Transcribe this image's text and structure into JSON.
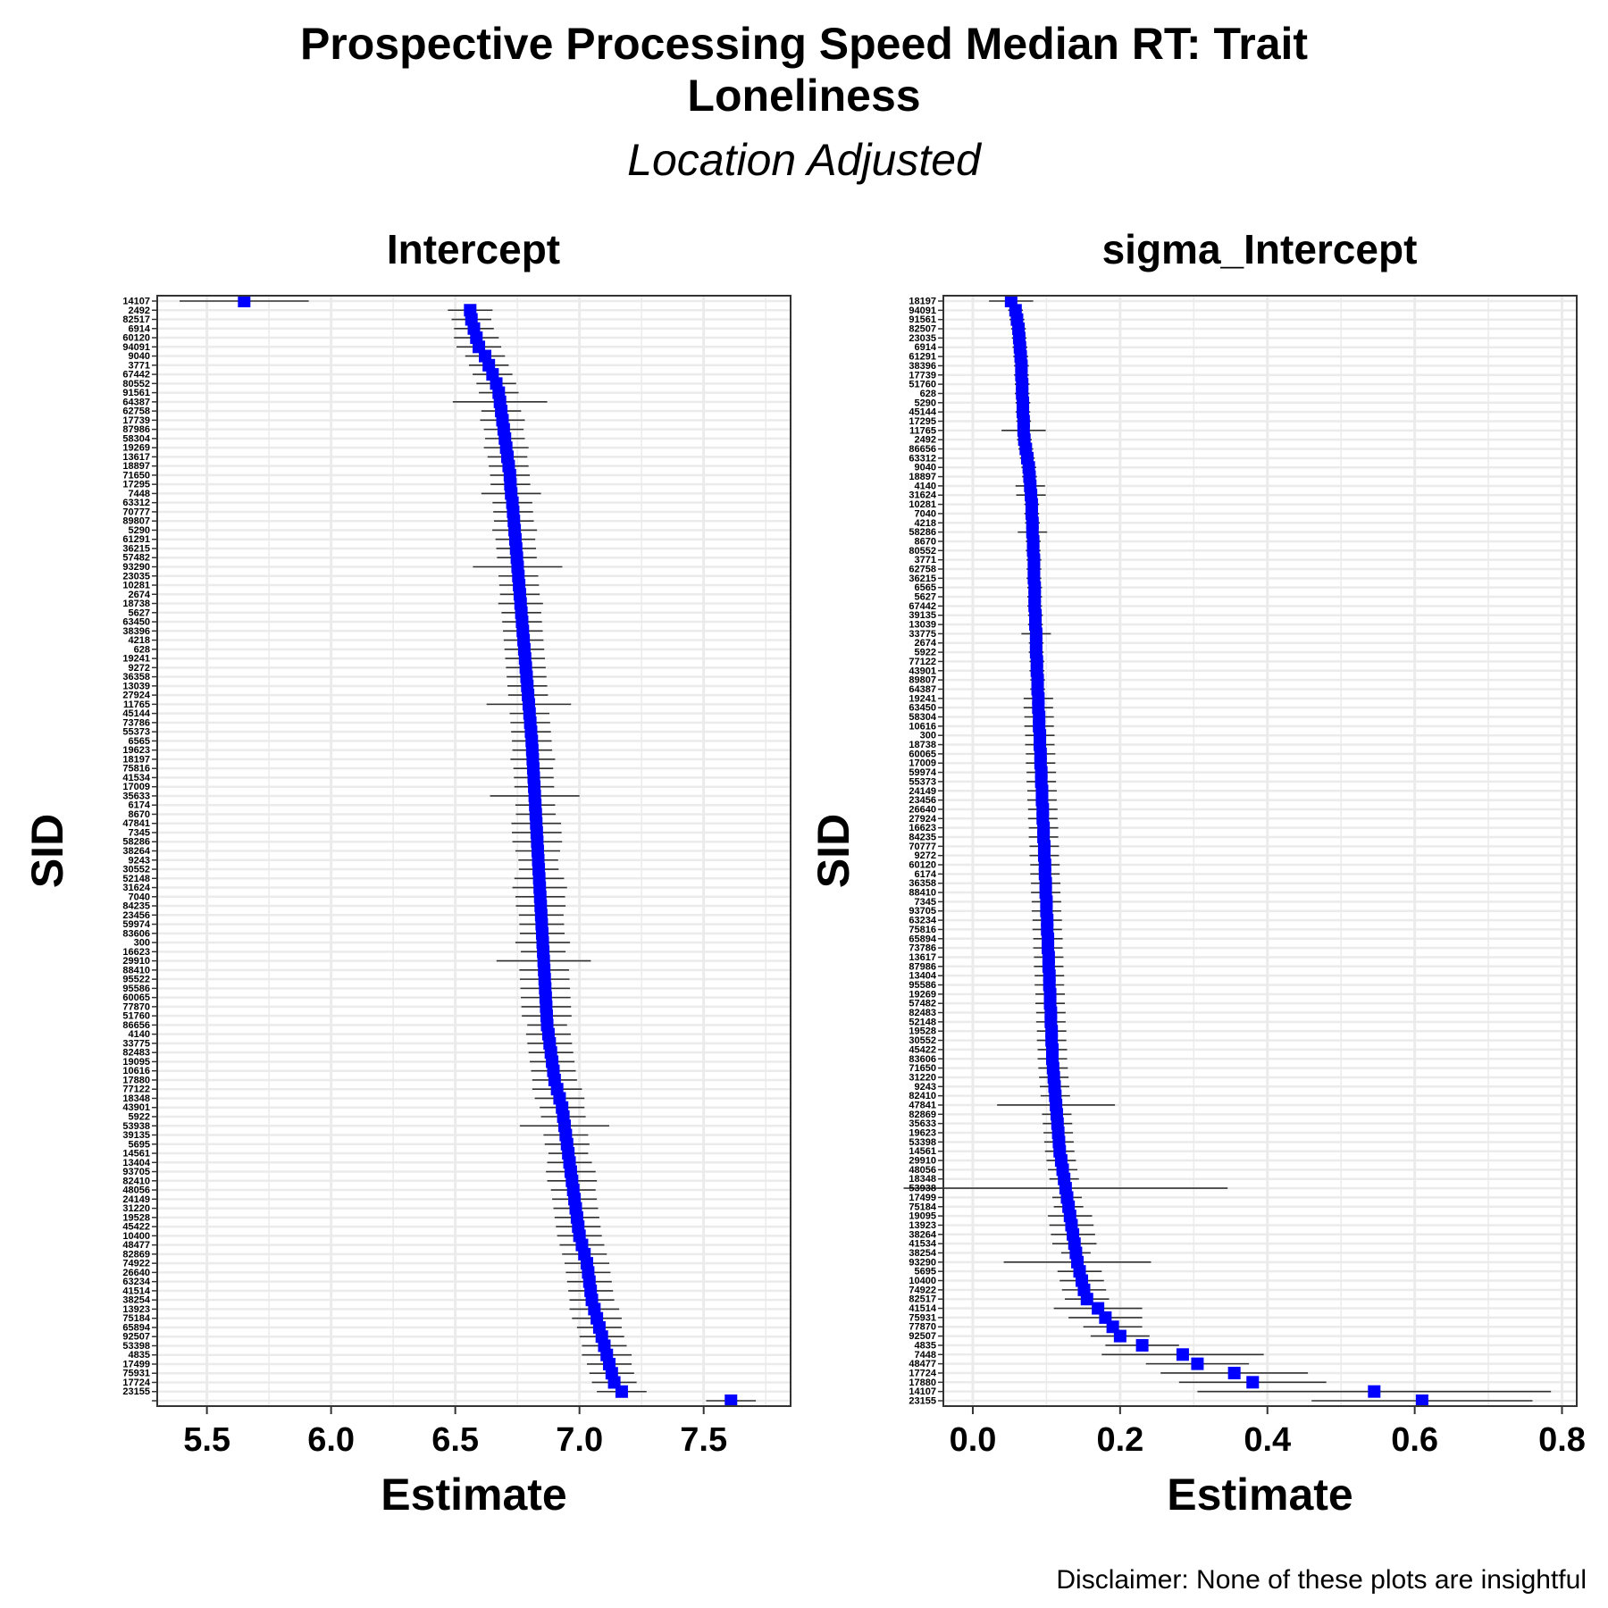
{
  "title_line1": "Prospective Processing Speed Median RT: Trait",
  "title_line2": "Loneliness",
  "subtitle": "Location Adjusted",
  "caption": "Disclaimer: None of these plots are insightful",
  "colors": {
    "point": "#0000ff",
    "errorbar": "#333333",
    "grid": "#ebebeb",
    "panel_border": "#333333"
  },
  "chart_data": [
    {
      "type": "scatter",
      "panel_title": "Intercept",
      "xlabel": "Estimate",
      "ylabel": "SID",
      "xlim": [
        5.3,
        7.85
      ],
      "xticks": [
        5.5,
        6.0,
        6.5,
        7.0,
        7.5
      ],
      "xtick_labels": [
        "5.5",
        "6.0",
        "6.5",
        "7.0",
        "7.5"
      ],
      "grid": true,
      "sids_top_to_bottom": [
        "14107",
        "2492",
        "82517",
        "6914",
        "60120",
        "94091",
        "9040",
        "3771",
        "67442",
        "80552",
        "91561",
        "64387",
        "62758",
        "17739",
        "87986",
        "58304",
        "19269",
        "13617",
        "18897",
        "71650",
        "17295",
        "7448",
        "63312",
        "70777",
        "89807",
        "5290",
        "61291",
        "36215",
        "57482",
        "93290",
        "23035",
        "10281",
        "2674",
        "18738",
        "5627",
        "63450",
        "38396",
        "4218",
        "628",
        "19241",
        "9272",
        "36358",
        "13039",
        "27924",
        "11765",
        "45144",
        "73786",
        "55373",
        "6565",
        "19623",
        "18197",
        "75816",
        "41534",
        "17009",
        "35633",
        "6174",
        "8670",
        "47841",
        "7345",
        "58286",
        "38264",
        "9243",
        "30552",
        "52148",
        "31624",
        "7040",
        "84235",
        "23456",
        "59974",
        "83606",
        "300",
        "16623",
        "29910",
        "88410",
        "95522",
        "95586",
        "60065",
        "77870",
        "51760",
        "86656",
        "4140",
        "33775",
        "82483",
        "19095",
        "10616",
        "17880",
        "77122",
        "18348",
        "43901",
        "5922",
        "53938",
        "39135",
        "5695",
        "14561",
        "13404",
        "93705",
        "82410",
        "48056",
        "24149",
        "31220",
        "19528",
        "45422",
        "10400",
        "48477",
        "82869",
        "74922",
        "26640",
        "63234",
        "41514",
        "38254",
        "13923",
        "75184",
        "65894",
        "92507",
        "53398",
        "4835",
        "17499",
        "75931",
        "17724",
        "23155"
      ],
      "estimates": [
        5.65,
        6.56,
        6.565,
        6.575,
        6.585,
        6.595,
        6.62,
        6.635,
        6.65,
        6.665,
        6.675,
        6.68,
        6.685,
        6.69,
        6.695,
        6.7,
        6.705,
        6.71,
        6.715,
        6.72,
        6.722,
        6.725,
        6.73,
        6.733,
        6.736,
        6.739,
        6.742,
        6.745,
        6.748,
        6.751,
        6.754,
        6.757,
        6.76,
        6.763,
        6.766,
        6.769,
        6.772,
        6.775,
        6.778,
        6.781,
        6.784,
        6.787,
        6.79,
        6.793,
        6.796,
        6.799,
        6.802,
        6.805,
        6.808,
        6.81,
        6.812,
        6.814,
        6.816,
        6.818,
        6.82,
        6.822,
        6.824,
        6.826,
        6.828,
        6.83,
        6.832,
        6.834,
        6.836,
        6.838,
        6.84,
        6.842,
        6.844,
        6.846,
        6.848,
        6.85,
        6.852,
        6.854,
        6.856,
        6.858,
        6.86,
        6.862,
        6.864,
        6.866,
        6.868,
        6.87,
        6.875,
        6.88,
        6.885,
        6.89,
        6.895,
        6.9,
        6.91,
        6.92,
        6.93,
        6.935,
        6.94,
        6.945,
        6.95,
        6.955,
        6.96,
        6.965,
        6.97,
        6.975,
        6.98,
        6.985,
        6.99,
        6.995,
        7.0,
        7.01,
        7.02,
        7.03,
        7.035,
        7.04,
        7.045,
        7.05,
        7.06,
        7.07,
        7.08,
        7.09,
        7.1,
        7.11,
        7.12,
        7.13,
        7.14,
        7.17,
        7.61
      ],
      "errors": [
        0.26,
        0.09,
        0.08,
        0.08,
        0.09,
        0.09,
        0.08,
        0.08,
        0.08,
        0.08,
        0.08,
        0.19,
        0.08,
        0.09,
        0.08,
        0.08,
        0.09,
        0.08,
        0.08,
        0.08,
        0.08,
        0.12,
        0.08,
        0.08,
        0.08,
        0.09,
        0.08,
        0.08,
        0.08,
        0.18,
        0.08,
        0.08,
        0.08,
        0.09,
        0.08,
        0.08,
        0.08,
        0.08,
        0.08,
        0.08,
        0.08,
        0.08,
        0.08,
        0.08,
        0.17,
        0.08,
        0.08,
        0.08,
        0.08,
        0.08,
        0.09,
        0.08,
        0.08,
        0.08,
        0.18,
        0.08,
        0.08,
        0.1,
        0.1,
        0.1,
        0.09,
        0.08,
        0.08,
        0.1,
        0.11,
        0.1,
        0.1,
        0.09,
        0.09,
        0.09,
        0.11,
        0.09,
        0.19,
        0.1,
        0.1,
        0.1,
        0.1,
        0.1,
        0.1,
        0.08,
        0.09,
        0.09,
        0.09,
        0.09,
        0.09,
        0.09,
        0.1,
        0.1,
        0.09,
        0.09,
        0.18,
        0.09,
        0.09,
        0.08,
        0.09,
        0.1,
        0.1,
        0.09,
        0.09,
        0.09,
        0.09,
        0.09,
        0.09,
        0.09,
        0.09,
        0.09,
        0.09,
        0.09,
        0.09,
        0.09,
        0.1,
        0.1,
        0.09,
        0.09,
        0.09,
        0.1,
        0.09,
        0.09,
        0.09,
        0.1,
        0.1,
        0.16
      ]
    },
    {
      "type": "scatter",
      "panel_title": "sigma_Intercept",
      "xlabel": "Estimate",
      "ylabel": "SID",
      "xlim": [
        -0.04,
        0.82
      ],
      "xticks": [
        0.0,
        0.2,
        0.4,
        0.6,
        0.8
      ],
      "xtick_labels": [
        "0.0",
        "0.2",
        "0.4",
        "0.6",
        "0.8"
      ],
      "grid": true,
      "sids_top_to_bottom": [
        "18197",
        "94091",
        "91561",
        "82507",
        "23035",
        "6914",
        "61291",
        "38396",
        "17739",
        "51760",
        "628",
        "5290",
        "45144",
        "17295",
        "11765",
        "2492",
        "86656",
        "63312",
        "9040",
        "18897",
        "4140",
        "31624",
        "10281",
        "7040",
        "4218",
        "58286",
        "8670",
        "80552",
        "3771",
        "62758",
        "36215",
        "6565",
        "5627",
        "67442",
        "39135",
        "13039",
        "33775",
        "2674",
        "5922",
        "77122",
        "43901",
        "89807",
        "64387",
        "19241",
        "63450",
        "58304",
        "10616",
        "300",
        "18738",
        "60065",
        "17009",
        "59974",
        "55373",
        "24149",
        "23456",
        "26640",
        "27924",
        "16623",
        "84235",
        "70777",
        "9272",
        "60120",
        "6174",
        "36358",
        "88410",
        "7345",
        "93705",
        "63234",
        "75816",
        "65894",
        "73786",
        "13617",
        "87986",
        "13404",
        "95586",
        "19269",
        "57482",
        "82483",
        "52148",
        "19528",
        "30552",
        "45422",
        "83606",
        "71650",
        "31220",
        "9243",
        "82410",
        "47841",
        "82869",
        "35633",
        "19623",
        "53398",
        "14561",
        "29910",
        "48056",
        "18348",
        "53938",
        "17499",
        "75184",
        "19095",
        "13923",
        "38264",
        "41534",
        "38254",
        "93290",
        "5695",
        "10400",
        "74922",
        "82517",
        "41514",
        "75931",
        "77870",
        "92507",
        "4835",
        "7448",
        "48477",
        "17724",
        "17880",
        "14107",
        "23155"
      ],
      "estimates": [
        0.052,
        0.058,
        0.06,
        0.062,
        0.063,
        0.064,
        0.065,
        0.066,
        0.066,
        0.067,
        0.067,
        0.068,
        0.068,
        0.069,
        0.069,
        0.07,
        0.072,
        0.074,
        0.076,
        0.077,
        0.078,
        0.079,
        0.08,
        0.08,
        0.081,
        0.081,
        0.082,
        0.082,
        0.083,
        0.083,
        0.083,
        0.084,
        0.084,
        0.084,
        0.085,
        0.085,
        0.086,
        0.086,
        0.086,
        0.087,
        0.087,
        0.088,
        0.088,
        0.089,
        0.089,
        0.09,
        0.09,
        0.091,
        0.091,
        0.092,
        0.092,
        0.093,
        0.093,
        0.094,
        0.094,
        0.095,
        0.095,
        0.096,
        0.096,
        0.097,
        0.097,
        0.098,
        0.098,
        0.099,
        0.099,
        0.1,
        0.1,
        0.101,
        0.101,
        0.102,
        0.102,
        0.103,
        0.103,
        0.104,
        0.104,
        0.105,
        0.105,
        0.106,
        0.106,
        0.107,
        0.107,
        0.108,
        0.108,
        0.109,
        0.11,
        0.111,
        0.112,
        0.113,
        0.114,
        0.115,
        0.116,
        0.117,
        0.118,
        0.12,
        0.122,
        0.124,
        0.126,
        0.128,
        0.13,
        0.132,
        0.134,
        0.136,
        0.138,
        0.14,
        0.142,
        0.145,
        0.148,
        0.151,
        0.155,
        0.17,
        0.18,
        0.19,
        0.2,
        0.23,
        0.285,
        0.305,
        0.355,
        0.38,
        0.545,
        0.61
      ],
      "errors": [
        0.03,
        0.01,
        0.01,
        0.01,
        0.01,
        0.01,
        0.01,
        0.01,
        0.01,
        0.01,
        0.01,
        0.01,
        0.01,
        0.01,
        0.03,
        0.01,
        0.01,
        0.01,
        0.01,
        0.01,
        0.02,
        0.02,
        0.01,
        0.01,
        0.01,
        0.02,
        0.01,
        0.01,
        0.01,
        0.01,
        0.01,
        0.01,
        0.01,
        0.01,
        0.01,
        0.01,
        0.02,
        0.01,
        0.01,
        0.01,
        0.01,
        0.01,
        0.01,
        0.02,
        0.02,
        0.02,
        0.02,
        0.02,
        0.02,
        0.02,
        0.02,
        0.02,
        0.02,
        0.02,
        0.02,
        0.02,
        0.02,
        0.02,
        0.02,
        0.02,
        0.02,
        0.02,
        0.02,
        0.02,
        0.02,
        0.02,
        0.02,
        0.02,
        0.02,
        0.02,
        0.02,
        0.02,
        0.02,
        0.02,
        0.02,
        0.02,
        0.02,
        0.02,
        0.02,
        0.02,
        0.02,
        0.02,
        0.02,
        0.02,
        0.02,
        0.02,
        0.02,
        0.08,
        0.02,
        0.02,
        0.02,
        0.02,
        0.02,
        0.02,
        0.02,
        0.02,
        0.22,
        0.02,
        0.02,
        0.03,
        0.03,
        0.03,
        0.03,
        0.02,
        0.1,
        0.03,
        0.03,
        0.03,
        0.03,
        0.06,
        0.05,
        0.04,
        0.04,
        0.05,
        0.11,
        0.07,
        0.1,
        0.1,
        0.24,
        0.15
      ]
    }
  ]
}
